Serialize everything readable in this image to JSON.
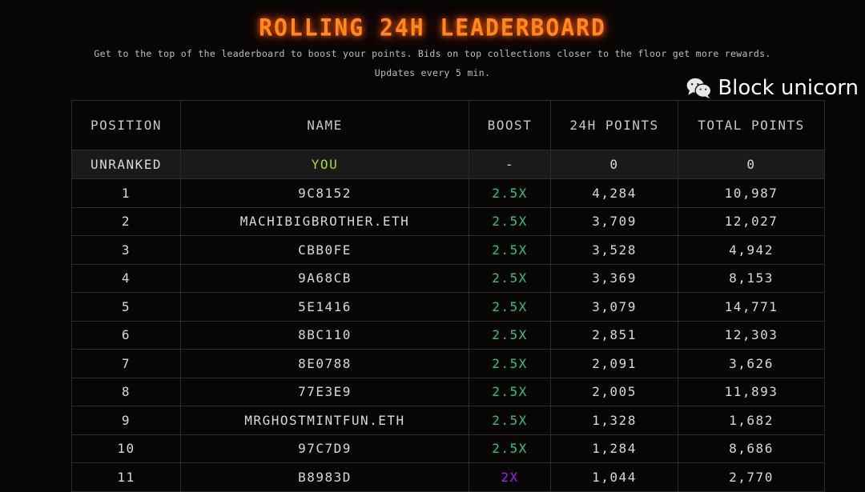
{
  "header": {
    "title": "ROLLING 24H LEADERBOARD",
    "subtitle": "Get to the top of the leaderboard to boost your points. Bids on top collections closer to the floor get more rewards.",
    "update_note": "Updates every 5 min."
  },
  "table": {
    "columns": [
      "POSITION",
      "NAME",
      "BOOST",
      "24H POINTS",
      "TOTAL POINTS"
    ],
    "you_row": {
      "position": "UNRANKED",
      "name": "YOU",
      "boost": "-",
      "points_24h": "0",
      "total_points": "0"
    },
    "rows": [
      {
        "position": "1",
        "name": "9C8152",
        "boost": "2.5X",
        "points_24h": "4,284",
        "total_points": "10,987"
      },
      {
        "position": "2",
        "name": "MACHIBIGBROTHER.ETH",
        "boost": "2.5X",
        "points_24h": "3,709",
        "total_points": "12,027"
      },
      {
        "position": "3",
        "name": "CBB0FE",
        "boost": "2.5X",
        "points_24h": "3,528",
        "total_points": "4,942"
      },
      {
        "position": "4",
        "name": "9A68CB",
        "boost": "2.5X",
        "points_24h": "3,369",
        "total_points": "8,153"
      },
      {
        "position": "5",
        "name": "5E1416",
        "boost": "2.5X",
        "points_24h": "3,079",
        "total_points": "14,771"
      },
      {
        "position": "6",
        "name": "8BC110",
        "boost": "2.5X",
        "points_24h": "2,851",
        "total_points": "12,303"
      },
      {
        "position": "7",
        "name": "8E0788",
        "boost": "2.5X",
        "points_24h": "2,091",
        "total_points": "3,626"
      },
      {
        "position": "8",
        "name": "77E3E9",
        "boost": "2.5X",
        "points_24h": "2,005",
        "total_points": "11,893"
      },
      {
        "position": "9",
        "name": "MRGHOSTMINTFUN.ETH",
        "boost": "2.5X",
        "points_24h": "1,328",
        "total_points": "1,682"
      },
      {
        "position": "10",
        "name": "97C7D9",
        "boost": "2.5X",
        "points_24h": "1,284",
        "total_points": "8,686"
      },
      {
        "position": "11",
        "name": "B8983D",
        "boost": "2X",
        "points_24h": "1,044",
        "total_points": "2,770"
      }
    ]
  },
  "colors": {
    "title": "#ff8a1a",
    "you": "#a6d93a",
    "boost_25": "#2fc47f",
    "boost_2": "#a020f0"
  },
  "watermark": {
    "text": "Block unicorn",
    "icon": "wechat-icon"
  }
}
